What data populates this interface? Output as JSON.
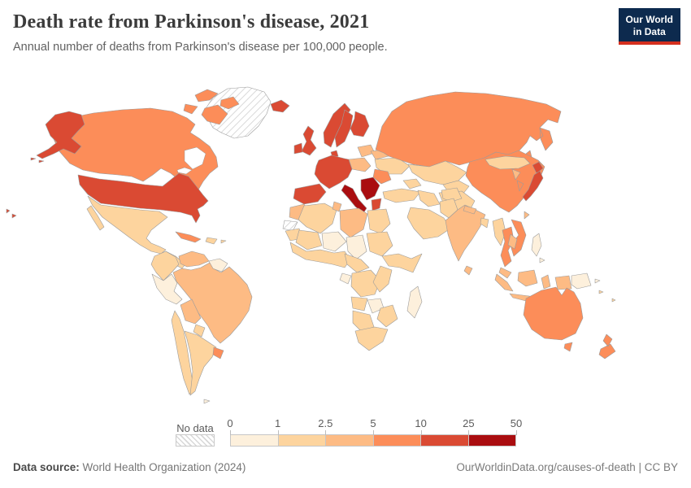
{
  "header": {
    "title": "Death rate from Parkinson's disease, 2021",
    "subtitle": "Annual number of deaths from Parkinson's disease per 100,000 people.",
    "logo": {
      "line1": "Our World",
      "line2": "in Data"
    }
  },
  "legend": {
    "no_data_label": "No data",
    "tick_labels": [
      "0",
      "1",
      "2.5",
      "5",
      "10",
      "25",
      "50"
    ]
  },
  "footer": {
    "source_label": "Data source:",
    "source": "World Health Organization (2024)",
    "url": "OurWorldinData.org/causes-of-death",
    "separator": " | ",
    "license": "CC BY"
  },
  "colors": {
    "logo_bg": "#0d2a4e",
    "logo_accent": "#d5301f",
    "border_gray": "#9b9b9b",
    "text_muted": "#5b5b5b"
  },
  "chart_data": {
    "type": "heatmap",
    "subtype": "world-choropleth-map",
    "title": "Death rate from Parkinson's disease, 2021",
    "unit": "deaths per 100,000 people",
    "year": 2021,
    "legend_position": "bottom",
    "bins": [
      {
        "label": "0-1",
        "min": 0,
        "max": 1,
        "color": "#fdf0dc"
      },
      {
        "label": "1-2.5",
        "min": 1,
        "max": 2.5,
        "color": "#fdd49e"
      },
      {
        "label": "2.5-5",
        "min": 2.5,
        "max": 5,
        "color": "#fdbb84"
      },
      {
        "label": "5-10",
        "min": 5,
        "max": 10,
        "color": "#fc8d59"
      },
      {
        "label": "10-25",
        "min": 10,
        "max": 25,
        "color": "#da4a33"
      },
      {
        "label": "25-50",
        "min": 25,
        "max": 50,
        "color": "#aa0d10"
      }
    ],
    "regions": [
      {
        "id": "greenland",
        "name": "Greenland",
        "bin": "no_data"
      },
      {
        "id": "western-sahara",
        "name": "Western Sahara",
        "bin": "no_data"
      },
      {
        "id": "canada",
        "name": "Canada",
        "bin": 3
      },
      {
        "id": "usa",
        "name": "United States",
        "bin": 4
      },
      {
        "id": "mexico",
        "name": "Mexico",
        "bin": 1
      },
      {
        "id": "central-america",
        "name": "Central America",
        "bin": 1
      },
      {
        "id": "cuba",
        "name": "Cuba",
        "bin": 3
      },
      {
        "id": "hispaniola",
        "name": "Hispaniola",
        "bin": 1
      },
      {
        "id": "colombia",
        "name": "Colombia",
        "bin": 1
      },
      {
        "id": "venezuela",
        "name": "Venezuela",
        "bin": 2
      },
      {
        "id": "guyanas",
        "name": "Guyanas",
        "bin": 0
      },
      {
        "id": "brazil",
        "name": "Brazil",
        "bin": 2
      },
      {
        "id": "peru",
        "name": "Peru",
        "bin": 0
      },
      {
        "id": "bolivia",
        "name": "Bolivia",
        "bin": 2
      },
      {
        "id": "paraguay",
        "name": "Paraguay",
        "bin": 1
      },
      {
        "id": "chile",
        "name": "Chile",
        "bin": 1
      },
      {
        "id": "argentina",
        "name": "Argentina",
        "bin": 1
      },
      {
        "id": "uruguay",
        "name": "Uruguay",
        "bin": 3
      },
      {
        "id": "falkland-islands",
        "name": "Falkland Islands",
        "bin": 0
      },
      {
        "id": "iceland",
        "name": "Iceland",
        "bin": 4
      },
      {
        "id": "united-kingdom",
        "name": "United Kingdom",
        "bin": 4
      },
      {
        "id": "ireland",
        "name": "Ireland",
        "bin": 4
      },
      {
        "id": "norway",
        "name": "Norway",
        "bin": 4
      },
      {
        "id": "sweden",
        "name": "Sweden",
        "bin": 4
      },
      {
        "id": "finland",
        "name": "Finland",
        "bin": 4
      },
      {
        "id": "denmark",
        "name": "Denmark",
        "bin": 4
      },
      {
        "id": "baltics",
        "name": "Baltic states",
        "bin": 2
      },
      {
        "id": "poland",
        "name": "Poland",
        "bin": 2
      },
      {
        "id": "western-europe",
        "name": "France, Germany & Benelux",
        "bin": 4
      },
      {
        "id": "spain-portugal",
        "name": "Spain & Portugal",
        "bin": 4
      },
      {
        "id": "italy",
        "name": "Italy",
        "bin": 5
      },
      {
        "id": "balkans",
        "name": "Western Balkans",
        "bin": 5
      },
      {
        "id": "greece",
        "name": "Greece",
        "bin": 4
      },
      {
        "id": "belarus",
        "name": "Belarus",
        "bin": 2
      },
      {
        "id": "ukraine",
        "name": "Ukraine",
        "bin": 1
      },
      {
        "id": "romania-bulgaria",
        "name": "Romania & Bulgaria",
        "bin": 3
      },
      {
        "id": "turkey",
        "name": "Turkey",
        "bin": 1
      },
      {
        "id": "russia",
        "name": "Russia",
        "bin": 3
      },
      {
        "id": "kazakhstan",
        "name": "Kazakhstan",
        "bin": 1
      },
      {
        "id": "central-asia",
        "name": "Central Asia",
        "bin": 1
      },
      {
        "id": "caucasus",
        "name": "Caucasus",
        "bin": 1
      },
      {
        "id": "iran",
        "name": "Iran",
        "bin": 1
      },
      {
        "id": "iraq-syria",
        "name": "Iraq & Syria",
        "bin": 1
      },
      {
        "id": "arabian-peninsula",
        "name": "Arabian Peninsula",
        "bin": 1
      },
      {
        "id": "morocco",
        "name": "Morocco",
        "bin": 2
      },
      {
        "id": "algeria",
        "name": "Algeria",
        "bin": 1
      },
      {
        "id": "tunisia",
        "name": "Tunisia",
        "bin": 2
      },
      {
        "id": "libya",
        "name": "Libya",
        "bin": 2
      },
      {
        "id": "egypt",
        "name": "Egypt",
        "bin": 1
      },
      {
        "id": "mauritania",
        "name": "Mauritania",
        "bin": 1
      },
      {
        "id": "mali",
        "name": "Mali",
        "bin": 1
      },
      {
        "id": "niger",
        "name": "Niger",
        "bin": 0
      },
      {
        "id": "chad",
        "name": "Chad",
        "bin": 0
      },
      {
        "id": "sudan",
        "name": "Sudan",
        "bin": 1
      },
      {
        "id": "horn-of-africa",
        "name": "Horn of Africa",
        "bin": 1
      },
      {
        "id": "west-africa",
        "name": "West Africa",
        "bin": 1
      },
      {
        "id": "central-africa",
        "name": "Central Africa",
        "bin": 1
      },
      {
        "id": "gabon",
        "name": "Gabon",
        "bin": 0
      },
      {
        "id": "drc",
        "name": "DR Congo",
        "bin": 1
      },
      {
        "id": "east-africa",
        "name": "East Africa",
        "bin": 1
      },
      {
        "id": "angola",
        "name": "Angola",
        "bin": 1
      },
      {
        "id": "zambia",
        "name": "Zambia",
        "bin": 0
      },
      {
        "id": "mozambique-zimbabwe",
        "name": "Mozambique & Zimbabwe",
        "bin": 1
      },
      {
        "id": "namibia-botswana",
        "name": "Namibia & Botswana",
        "bin": 1
      },
      {
        "id": "south-africa",
        "name": "South Africa",
        "bin": 1
      },
      {
        "id": "madagascar",
        "name": "Madagascar",
        "bin": 0
      },
      {
        "id": "afghanistan",
        "name": "Afghanistan",
        "bin": 1
      },
      {
        "id": "pakistan",
        "name": "Pakistan",
        "bin": 1
      },
      {
        "id": "india",
        "name": "India",
        "bin": 2
      },
      {
        "id": "nepal",
        "name": "Nepal",
        "bin": 2
      },
      {
        "id": "bangladesh",
        "name": "Bangladesh",
        "bin": 1
      },
      {
        "id": "sri-lanka",
        "name": "Sri Lanka",
        "bin": 2
      },
      {
        "id": "china",
        "name": "China",
        "bin": 3
      },
      {
        "id": "mongolia",
        "name": "Mongolia",
        "bin": 1
      },
      {
        "id": "north-korea",
        "name": "North Korea",
        "bin": 2
      },
      {
        "id": "south-korea",
        "name": "South Korea",
        "bin": 3
      },
      {
        "id": "japan",
        "name": "Japan",
        "bin": 4
      },
      {
        "id": "taiwan",
        "name": "Taiwan",
        "bin": 2
      },
      {
        "id": "myanmar",
        "name": "Myanmar",
        "bin": 1
      },
      {
        "id": "thailand",
        "name": "Thailand",
        "bin": 3
      },
      {
        "id": "vietnam",
        "name": "Vietnam",
        "bin": 3
      },
      {
        "id": "laos-cambodia",
        "name": "Laos & Cambodia",
        "bin": 2
      },
      {
        "id": "malaysia",
        "name": "Malaysia",
        "bin": 2
      },
      {
        "id": "indonesia",
        "name": "Indonesia",
        "bin": 2
      },
      {
        "id": "philippines",
        "name": "Philippines",
        "bin": 0
      },
      {
        "id": "papua-new-guinea",
        "name": "Papua New Guinea",
        "bin": 0
      },
      {
        "id": "pacific-islands",
        "name": "Pacific islands",
        "bin": 1
      },
      {
        "id": "australia",
        "name": "Australia",
        "bin": 3
      },
      {
        "id": "new-zealand",
        "name": "New Zealand",
        "bin": 3
      }
    ]
  }
}
